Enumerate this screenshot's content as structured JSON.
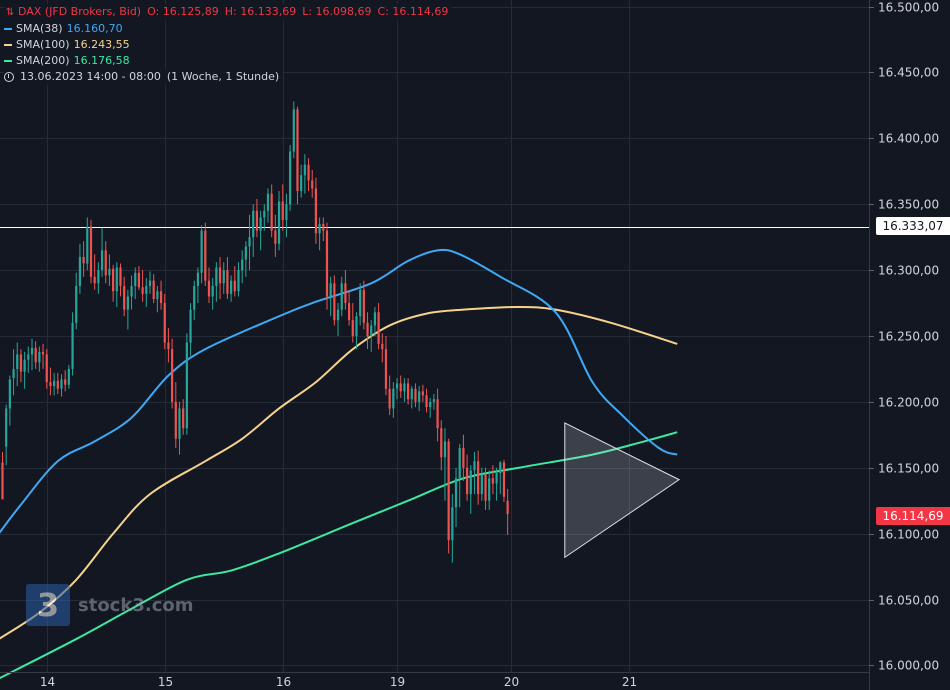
{
  "legend": {
    "instrument": "DAX (JFD Brokers, Bid)",
    "open": "O: 16.125,89",
    "high": "H: 16.133,69",
    "low": "L: 16.098,69",
    "close": "C: 16.114,69",
    "sma38_label": "SMA(38)",
    "sma38_value": "16.160,70",
    "sma100_label": "SMA(100)",
    "sma100_value": "16.243,55",
    "sma200_label": "SMA(200)",
    "sma200_value": "16.176,58",
    "datetime": "13.06.2023 14:00 - 08:00",
    "range": "(1 Woche, 1 Stunde)"
  },
  "watermark": {
    "text": "stock3.com",
    "logo_glyph": "3"
  },
  "price_tags": {
    "horizontal_line": "16.333,07",
    "last_price": "16.114,69"
  },
  "colors": {
    "background": "#131722",
    "up": "#26a69a",
    "down": "#ef5350",
    "sma38": "#3fa9f5",
    "sma100": "#f7d28c",
    "sma200": "#3ee8a0",
    "grid": "#262b38",
    "text": "#d1d4dc"
  },
  "chart_data": {
    "type": "candlestick",
    "title": "DAX (JFD Brokers, Bid)",
    "ylim": [
      15995,
      16505
    ],
    "y_ticks": [
      {
        "v": 16000,
        "label": "16.000,00"
      },
      {
        "v": 16050,
        "label": "16.050,00"
      },
      {
        "v": 16100,
        "label": "16.100,00"
      },
      {
        "v": 16150,
        "label": "16.150,00"
      },
      {
        "v": 16200,
        "label": "16.200,00"
      },
      {
        "v": 16250,
        "label": "16.250,00"
      },
      {
        "v": 16300,
        "label": "16.300,00"
      },
      {
        "v": 16350,
        "label": "16.350,00"
      },
      {
        "v": 16400,
        "label": "16.400,00"
      },
      {
        "v": 16450,
        "label": "16.450,00"
      },
      {
        "v": 16500,
        "label": "16.500,00"
      }
    ],
    "x_ticks": [
      {
        "i": 12,
        "label": "14"
      },
      {
        "i": 44,
        "label": "15"
      },
      {
        "i": 76,
        "label": "16"
      },
      {
        "i": 107,
        "label": "19"
      },
      {
        "i": 138,
        "label": "20"
      },
      {
        "i": 170,
        "label": "21"
      }
    ],
    "n_slots": 235,
    "horizontal_line": 16333.07,
    "candles": [
      [
        16154,
        16162,
        16130,
        16126
      ],
      [
        16166,
        16198,
        16152,
        16195
      ],
      [
        16195,
        16220,
        16182,
        16217
      ],
      [
        16218,
        16240,
        16205,
        16225
      ],
      [
        16225,
        16245,
        16212,
        16236
      ],
      [
        16236,
        16240,
        16215,
        16223
      ],
      [
        16223,
        16238,
        16210,
        16232
      ],
      [
        16232,
        16242,
        16222,
        16236
      ],
      [
        16236,
        16248,
        16224,
        16241
      ],
      [
        16241,
        16246,
        16225,
        16230
      ],
      [
        16230,
        16242,
        16223,
        16238
      ],
      [
        16238,
        16244,
        16225,
        16236
      ],
      [
        16236,
        16240,
        16210,
        16215
      ],
      [
        16215,
        16226,
        16205,
        16212
      ],
      [
        16212,
        16222,
        16205,
        16216
      ],
      [
        16216,
        16222,
        16206,
        16210
      ],
      [
        16210,
        16221,
        16204,
        16217
      ],
      [
        16217,
        16224,
        16208,
        16213
      ],
      [
        16213,
        16228,
        16210,
        16225
      ],
      [
        16225,
        16268,
        16220,
        16260
      ],
      [
        16260,
        16298,
        16255,
        16288
      ],
      [
        16288,
        16320,
        16282,
        16310
      ],
      [
        16310,
        16322,
        16295,
        16305
      ],
      [
        16305,
        16340,
        16300,
        16333
      ],
      [
        16333,
        16338,
        16290,
        16295
      ],
      [
        16295,
        16312,
        16285,
        16290
      ],
      [
        16290,
        16306,
        16282,
        16300
      ],
      [
        16300,
        16332,
        16295,
        16315
      ],
      [
        16315,
        16322,
        16290,
        16296
      ],
      [
        16296,
        16312,
        16288,
        16301
      ],
      [
        16301,
        16304,
        16276,
        16284
      ],
      [
        16284,
        16306,
        16272,
        16302
      ],
      [
        16302,
        16305,
        16280,
        16288
      ],
      [
        16288,
        16295,
        16265,
        16270
      ],
      [
        16270,
        16285,
        16255,
        16280
      ],
      [
        16280,
        16296,
        16270,
        16288
      ],
      [
        16288,
        16302,
        16278,
        16298
      ],
      [
        16298,
        16303,
        16285,
        16287
      ],
      [
        16287,
        16300,
        16276,
        16282
      ],
      [
        16282,
        16294,
        16272,
        16288
      ],
      [
        16288,
        16299,
        16282,
        16292
      ],
      [
        16292,
        16297,
        16275,
        16278
      ],
      [
        16278,
        16288,
        16268,
        16284
      ],
      [
        16284,
        16292,
        16270,
        16275
      ],
      [
        16275,
        16282,
        16240,
        16245
      ],
      [
        16245,
        16256,
        16230,
        16240
      ],
      [
        16240,
        16248,
        16195,
        16200
      ],
      [
        16200,
        16215,
        16165,
        16172
      ],
      [
        16172,
        16200,
        16160,
        16195
      ],
      [
        16195,
        16202,
        16175,
        16180
      ],
      [
        16180,
        16252,
        16175,
        16245
      ],
      [
        16245,
        16275,
        16235,
        16270
      ],
      [
        16270,
        16292,
        16262,
        16288
      ],
      [
        16288,
        16302,
        16275,
        16298
      ],
      [
        16298,
        16334,
        16290,
        16330
      ],
      [
        16330,
        16336,
        16288,
        16292
      ],
      [
        16292,
        16302,
        16275,
        16280
      ],
      [
        16280,
        16294,
        16270,
        16288
      ],
      [
        16288,
        16306,
        16276,
        16302
      ],
      [
        16302,
        16310,
        16278,
        16290
      ],
      [
        16290,
        16306,
        16282,
        16300
      ],
      [
        16300,
        16310,
        16278,
        16282
      ],
      [
        16282,
        16296,
        16276,
        16292
      ],
      [
        16292,
        16303,
        16280,
        16284
      ],
      [
        16284,
        16306,
        16280,
        16300
      ],
      [
        16300,
        16315,
        16290,
        16308
      ],
      [
        16308,
        16322,
        16295,
        16318
      ],
      [
        16318,
        16342,
        16300,
        16325
      ],
      [
        16325,
        16350,
        16310,
        16345
      ],
      [
        16345,
        16354,
        16325,
        16330
      ],
      [
        16330,
        16345,
        16315,
        16340
      ],
      [
        16340,
        16350,
        16330,
        16345
      ],
      [
        16345,
        16362,
        16336,
        16358
      ],
      [
        16358,
        16365,
        16325,
        16330
      ],
      [
        16330,
        16342,
        16310,
        16320
      ],
      [
        16320,
        16360,
        16315,
        16352
      ],
      [
        16352,
        16365,
        16330,
        16338
      ],
      [
        16338,
        16358,
        16325,
        16350
      ],
      [
        16350,
        16395,
        16345,
        16390
      ],
      [
        16390,
        16428,
        16385,
        16422
      ],
      [
        16422,
        16424,
        16350,
        16360
      ],
      [
        16360,
        16380,
        16355,
        16372
      ],
      [
        16372,
        16388,
        16358,
        16380
      ],
      [
        16380,
        16385,
        16360,
        16368
      ],
      [
        16368,
        16376,
        16355,
        16362
      ],
      [
        16362,
        16370,
        16320,
        16328
      ],
      [
        16328,
        16340,
        16315,
        16335
      ],
      [
        16335,
        16340,
        16322,
        16330
      ],
      [
        16330,
        16336,
        16270,
        16280
      ],
      [
        16280,
        16295,
        16265,
        16290
      ],
      [
        16290,
        16296,
        16258,
        16262
      ],
      [
        16262,
        16275,
        16250,
        16270
      ],
      [
        16270,
        16295,
        16265,
        16290
      ],
      [
        16290,
        16300,
        16270,
        16275
      ],
      [
        16275,
        16285,
        16258,
        16262
      ],
      [
        16262,
        16275,
        16245,
        16250
      ],
      [
        16250,
        16268,
        16240,
        16265
      ],
      [
        16265,
        16290,
        16258,
        16285
      ],
      [
        16285,
        16292,
        16255,
        16260
      ],
      [
        16260,
        16268,
        16240,
        16250
      ],
      [
        16250,
        16262,
        16238,
        16258
      ],
      [
        16258,
        16272,
        16250,
        16268
      ],
      [
        16268,
        16275,
        16240,
        16244
      ],
      [
        16244,
        16252,
        16230,
        16240
      ],
      [
        16240,
        16250,
        16205,
        16210
      ],
      [
        16210,
        16220,
        16190,
        16195
      ],
      [
        16195,
        16215,
        16188,
        16210
      ],
      [
        16210,
        16218,
        16202,
        16214
      ],
      [
        16214,
        16220,
        16203,
        16208
      ],
      [
        16208,
        16218,
        16200,
        16214
      ],
      [
        16214,
        16218,
        16198,
        16202
      ],
      [
        16202,
        16212,
        16195,
        16210
      ],
      [
        16210,
        16214,
        16196,
        16200
      ],
      [
        16200,
        16212,
        16193,
        16208
      ],
      [
        16208,
        16213,
        16200,
        16205
      ],
      [
        16205,
        16210,
        16192,
        16196
      ],
      [
        16196,
        16203,
        16188,
        16200
      ],
      [
        16200,
        16206,
        16194,
        16202
      ],
      [
        16202,
        16210,
        16170,
        16180
      ],
      [
        16180,
        16186,
        16148,
        16158
      ],
      [
        16158,
        16180,
        16125,
        16170
      ],
      [
        16170,
        16172,
        16085,
        16095
      ],
      [
        16095,
        16130,
        16078,
        16120
      ],
      [
        16120,
        16150,
        16105,
        16142
      ],
      [
        16142,
        16168,
        16120,
        16165
      ],
      [
        16165,
        16175,
        16140,
        16150
      ],
      [
        16150,
        16160,
        16125,
        16130
      ],
      [
        16130,
        16152,
        16115,
        16148
      ],
      [
        16148,
        16162,
        16130,
        16155
      ],
      [
        16155,
        16163,
        16122,
        16130
      ],
      [
        16130,
        16150,
        16125,
        16145
      ],
      [
        16145,
        16150,
        16118,
        16125
      ],
      [
        16125,
        16148,
        16118,
        16142
      ],
      [
        16142,
        16152,
        16130,
        16138
      ],
      [
        16138,
        16150,
        16125,
        16146
      ],
      [
        16146,
        16155,
        16130,
        16154
      ],
      [
        16154,
        16156,
        16124,
        16128
      ],
      [
        16125,
        16134,
        16099,
        16115
      ]
    ],
    "sma38_label": "SMA(38)",
    "sma100_label": "SMA(100)",
    "sma200_label": "SMA(200)",
    "sma38": [
      [
        -1,
        16100
      ],
      [
        5,
        16122
      ],
      [
        15,
        16155
      ],
      [
        25,
        16170
      ],
      [
        35,
        16188
      ],
      [
        45,
        16220
      ],
      [
        55,
        16240
      ],
      [
        75,
        16265
      ],
      [
        85,
        16276
      ],
      [
        100,
        16290
      ],
      [
        110,
        16307
      ],
      [
        118,
        16315
      ],
      [
        124,
        16312
      ],
      [
        135,
        16295
      ],
      [
        150,
        16268
      ],
      [
        160,
        16215
      ],
      [
        168,
        16190
      ],
      [
        178,
        16165
      ],
      [
        183,
        16160
      ]
    ],
    "sma100": [
      [
        -1,
        16020
      ],
      [
        10,
        16040
      ],
      [
        20,
        16065
      ],
      [
        30,
        16100
      ],
      [
        40,
        16130
      ],
      [
        55,
        16155
      ],
      [
        65,
        16172
      ],
      [
        75,
        16195
      ],
      [
        85,
        16215
      ],
      [
        95,
        16240
      ],
      [
        105,
        16258
      ],
      [
        115,
        16267
      ],
      [
        125,
        16270
      ],
      [
        140,
        16272
      ],
      [
        150,
        16270
      ],
      [
        165,
        16260
      ],
      [
        183,
        16244
      ]
    ],
    "sma200": [
      [
        -1,
        15990
      ],
      [
        20,
        16020
      ],
      [
        35,
        16043
      ],
      [
        50,
        16065
      ],
      [
        62,
        16072
      ],
      [
        75,
        16085
      ],
      [
        95,
        16108
      ],
      [
        110,
        16125
      ],
      [
        125,
        16142
      ],
      [
        140,
        16150
      ],
      [
        160,
        16160
      ],
      [
        174,
        16170
      ],
      [
        183,
        16177
      ]
    ],
    "triangle": [
      [
        152.5,
        16184
      ],
      [
        183.5,
        16141
      ],
      [
        152.5,
        16082
      ]
    ]
  }
}
